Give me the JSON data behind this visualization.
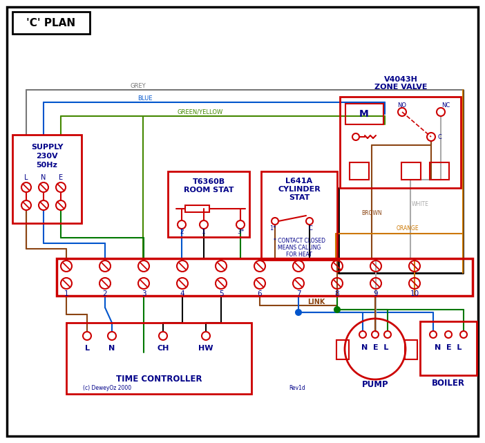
{
  "title": "'C' PLAN",
  "red": "#cc0000",
  "blue": "#0055cc",
  "green": "#007700",
  "brown": "#8B4513",
  "grey": "#777777",
  "orange": "#cc7700",
  "black": "#000000",
  "gy": "#448800",
  "tblue": "#000088",
  "white_w": "#aaaaaa",
  "copyright": "(c) DeweyOz 2000",
  "rev": "Rev1d"
}
